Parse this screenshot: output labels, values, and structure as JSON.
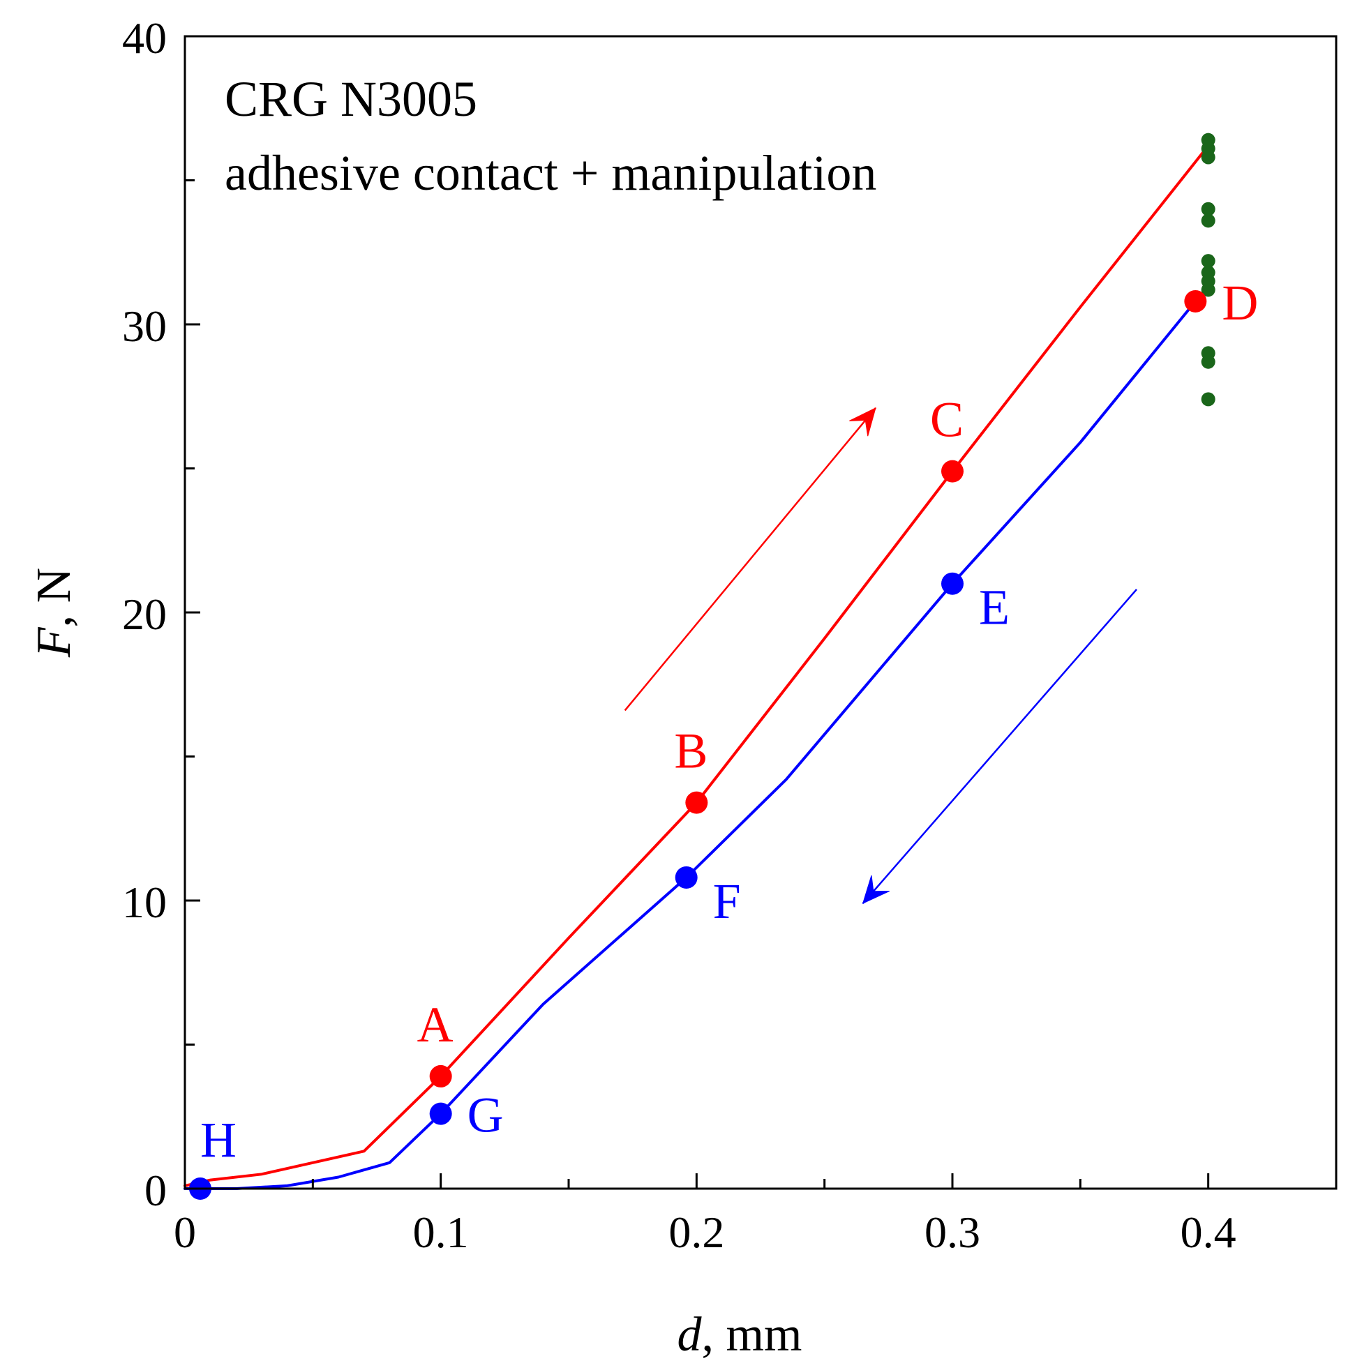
{
  "chart_data": {
    "type": "line",
    "annotation_lines": [
      "CRG N3005",
      "adhesive contact + manipulation"
    ],
    "xlabel_var": "d",
    "xlabel_unit": ", mm",
    "ylabel_var": "F",
    "ylabel_unit": ", N",
    "xlim": [
      0,
      0.45
    ],
    "ylim": [
      0,
      40
    ],
    "x_ticks_major": [
      0,
      0.1,
      0.2,
      0.3,
      0.4
    ],
    "x_tick_labels": [
      "0",
      "0.1",
      "0.2",
      "0.3",
      "0.4"
    ],
    "x_ticks_minor": [
      0.05,
      0.15,
      0.25,
      0.35
    ],
    "y_ticks_major": [
      0,
      10,
      20,
      30,
      40
    ],
    "y_tick_labels": [
      "0",
      "10",
      "20",
      "30",
      "40"
    ],
    "y_ticks_minor": [
      5,
      15,
      25,
      35
    ],
    "grid": false,
    "colors": {
      "loading": "#ff0000",
      "unloading": "#0000ff",
      "scatter": "#1a661a"
    },
    "series": [
      {
        "role": "loading",
        "color": "#ff0000",
        "x": [
          0.0,
          0.01,
          0.03,
          0.05,
          0.07,
          0.1,
          0.15,
          0.2,
          0.25,
          0.3,
          0.35,
          0.4
        ],
        "y": [
          0.1,
          0.3,
          0.5,
          0.9,
          1.3,
          3.9,
          8.7,
          13.4,
          19.1,
          24.9,
          30.6,
          36.2
        ]
      },
      {
        "role": "unloading",
        "color": "#0000ff",
        "x": [
          0.0,
          0.02,
          0.04,
          0.06,
          0.08,
          0.1,
          0.14,
          0.196,
          0.235,
          0.3,
          0.35,
          0.395
        ],
        "y": [
          0.0,
          0.0,
          0.1,
          0.4,
          0.9,
          2.6,
          6.4,
          10.8,
          14.2,
          21.0,
          25.9,
          30.8
        ]
      }
    ],
    "labeled_points": [
      {
        "label": "A",
        "x": 0.1,
        "y": 3.9,
        "color": "#ff0000",
        "label_pos": "above-left"
      },
      {
        "label": "B",
        "x": 0.2,
        "y": 13.4,
        "color": "#ff0000",
        "label_pos": "above-left"
      },
      {
        "label": "C",
        "x": 0.3,
        "y": 24.9,
        "color": "#ff0000",
        "label_pos": "above-left"
      },
      {
        "label": "D",
        "x": 0.395,
        "y": 30.8,
        "color": "#ff0000",
        "label_pos": "right"
      },
      {
        "label": "E",
        "x": 0.3,
        "y": 21.0,
        "color": "#0000ff",
        "label_pos": "below-right"
      },
      {
        "label": "F",
        "x": 0.196,
        "y": 10.8,
        "color": "#0000ff",
        "label_pos": "below-right"
      },
      {
        "label": "G",
        "x": 0.1,
        "y": 2.6,
        "color": "#0000ff",
        "label_pos": "right"
      },
      {
        "label": "H",
        "x": 0.006,
        "y": 0.0,
        "color": "#0000ff",
        "label_pos": "above"
      }
    ],
    "scatter_points": {
      "color": "#1a661a",
      "x": [
        0.4,
        0.4,
        0.4,
        0.4,
        0.4,
        0.4,
        0.4,
        0.4,
        0.4,
        0.4,
        0.4,
        0.4
      ],
      "y": [
        36.4,
        36.1,
        35.8,
        34.0,
        33.6,
        32.2,
        31.8,
        31.5,
        31.2,
        29.0,
        28.7,
        27.4
      ]
    },
    "direction_arrows": [
      {
        "role": "loading-direction",
        "color": "#ff0000",
        "from": [
          0.172,
          16.6
        ],
        "to": [
          0.27,
          27.1
        ]
      },
      {
        "role": "unloading-direction",
        "color": "#0000ff",
        "from": [
          0.372,
          20.8
        ],
        "to": [
          0.265,
          9.9
        ]
      }
    ]
  }
}
